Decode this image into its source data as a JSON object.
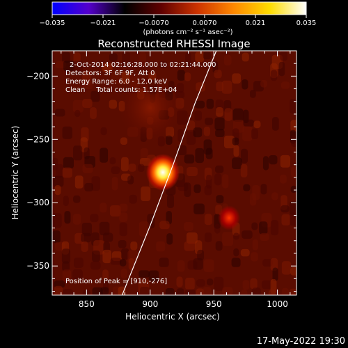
{
  "colorbar": {
    "ticks": [
      "−0.035",
      "−0.021",
      "−0.0070",
      "0.0070",
      "0.021",
      "0.035"
    ],
    "units_label": "(photons cm⁻² s⁻¹ asec⁻²)"
  },
  "plot_title": "Reconstructed RHESSI Image",
  "annotations": {
    "time_range": "2-Oct-2014 02:16:28.000 to 02:21:44.000",
    "detectors": "Detectors: 3F 6F 9F, Att 0",
    "energy_range": "Energy Range: 6.0 - 12.0 keV",
    "clean_counts": "Clean     Total counts: 1.57E+04",
    "peak_position": "Position of Peak = [910,-276]"
  },
  "footer_timestamp": "17-May-2022 19:30",
  "chart_data": {
    "type": "heatmap",
    "title": "Reconstructed RHESSI Image",
    "xlabel": "Heliocentric X (arcsec)",
    "ylabel": "Heliocentric Y (arcsec)",
    "xlim": [
      823,
      1015
    ],
    "ylim": [
      -373,
      -180
    ],
    "xticks": [
      850,
      900,
      950,
      1000
    ],
    "yticks": [
      -200,
      -250,
      -300,
      -350
    ],
    "xtick_labels": [
      "850",
      "900",
      "950",
      "1000"
    ],
    "ytick_labels": [
      "−200",
      "−250",
      "−300",
      "−350"
    ],
    "colorbar_range": [
      -0.035,
      0.035
    ],
    "colormap": [
      "#0000ff",
      "#5500cc",
      "#000000",
      "#600000",
      "#cc3300",
      "#ff8800",
      "#ffdd00",
      "#ffffff"
    ],
    "sources": [
      {
        "x": 910,
        "y": -276,
        "intensity": 1.0,
        "sigma": 6
      },
      {
        "x": 962,
        "y": -312,
        "intensity": 0.35,
        "sigma": 4
      },
      {
        "x": 900,
        "y": -225,
        "intensity": 0.15,
        "sigma": 12
      }
    ],
    "limb_curve": [
      [
        878,
        -373
      ],
      [
        900,
        -318
      ],
      [
        918,
        -270
      ],
      [
        935,
        -222
      ],
      [
        952,
        -180
      ]
    ]
  }
}
